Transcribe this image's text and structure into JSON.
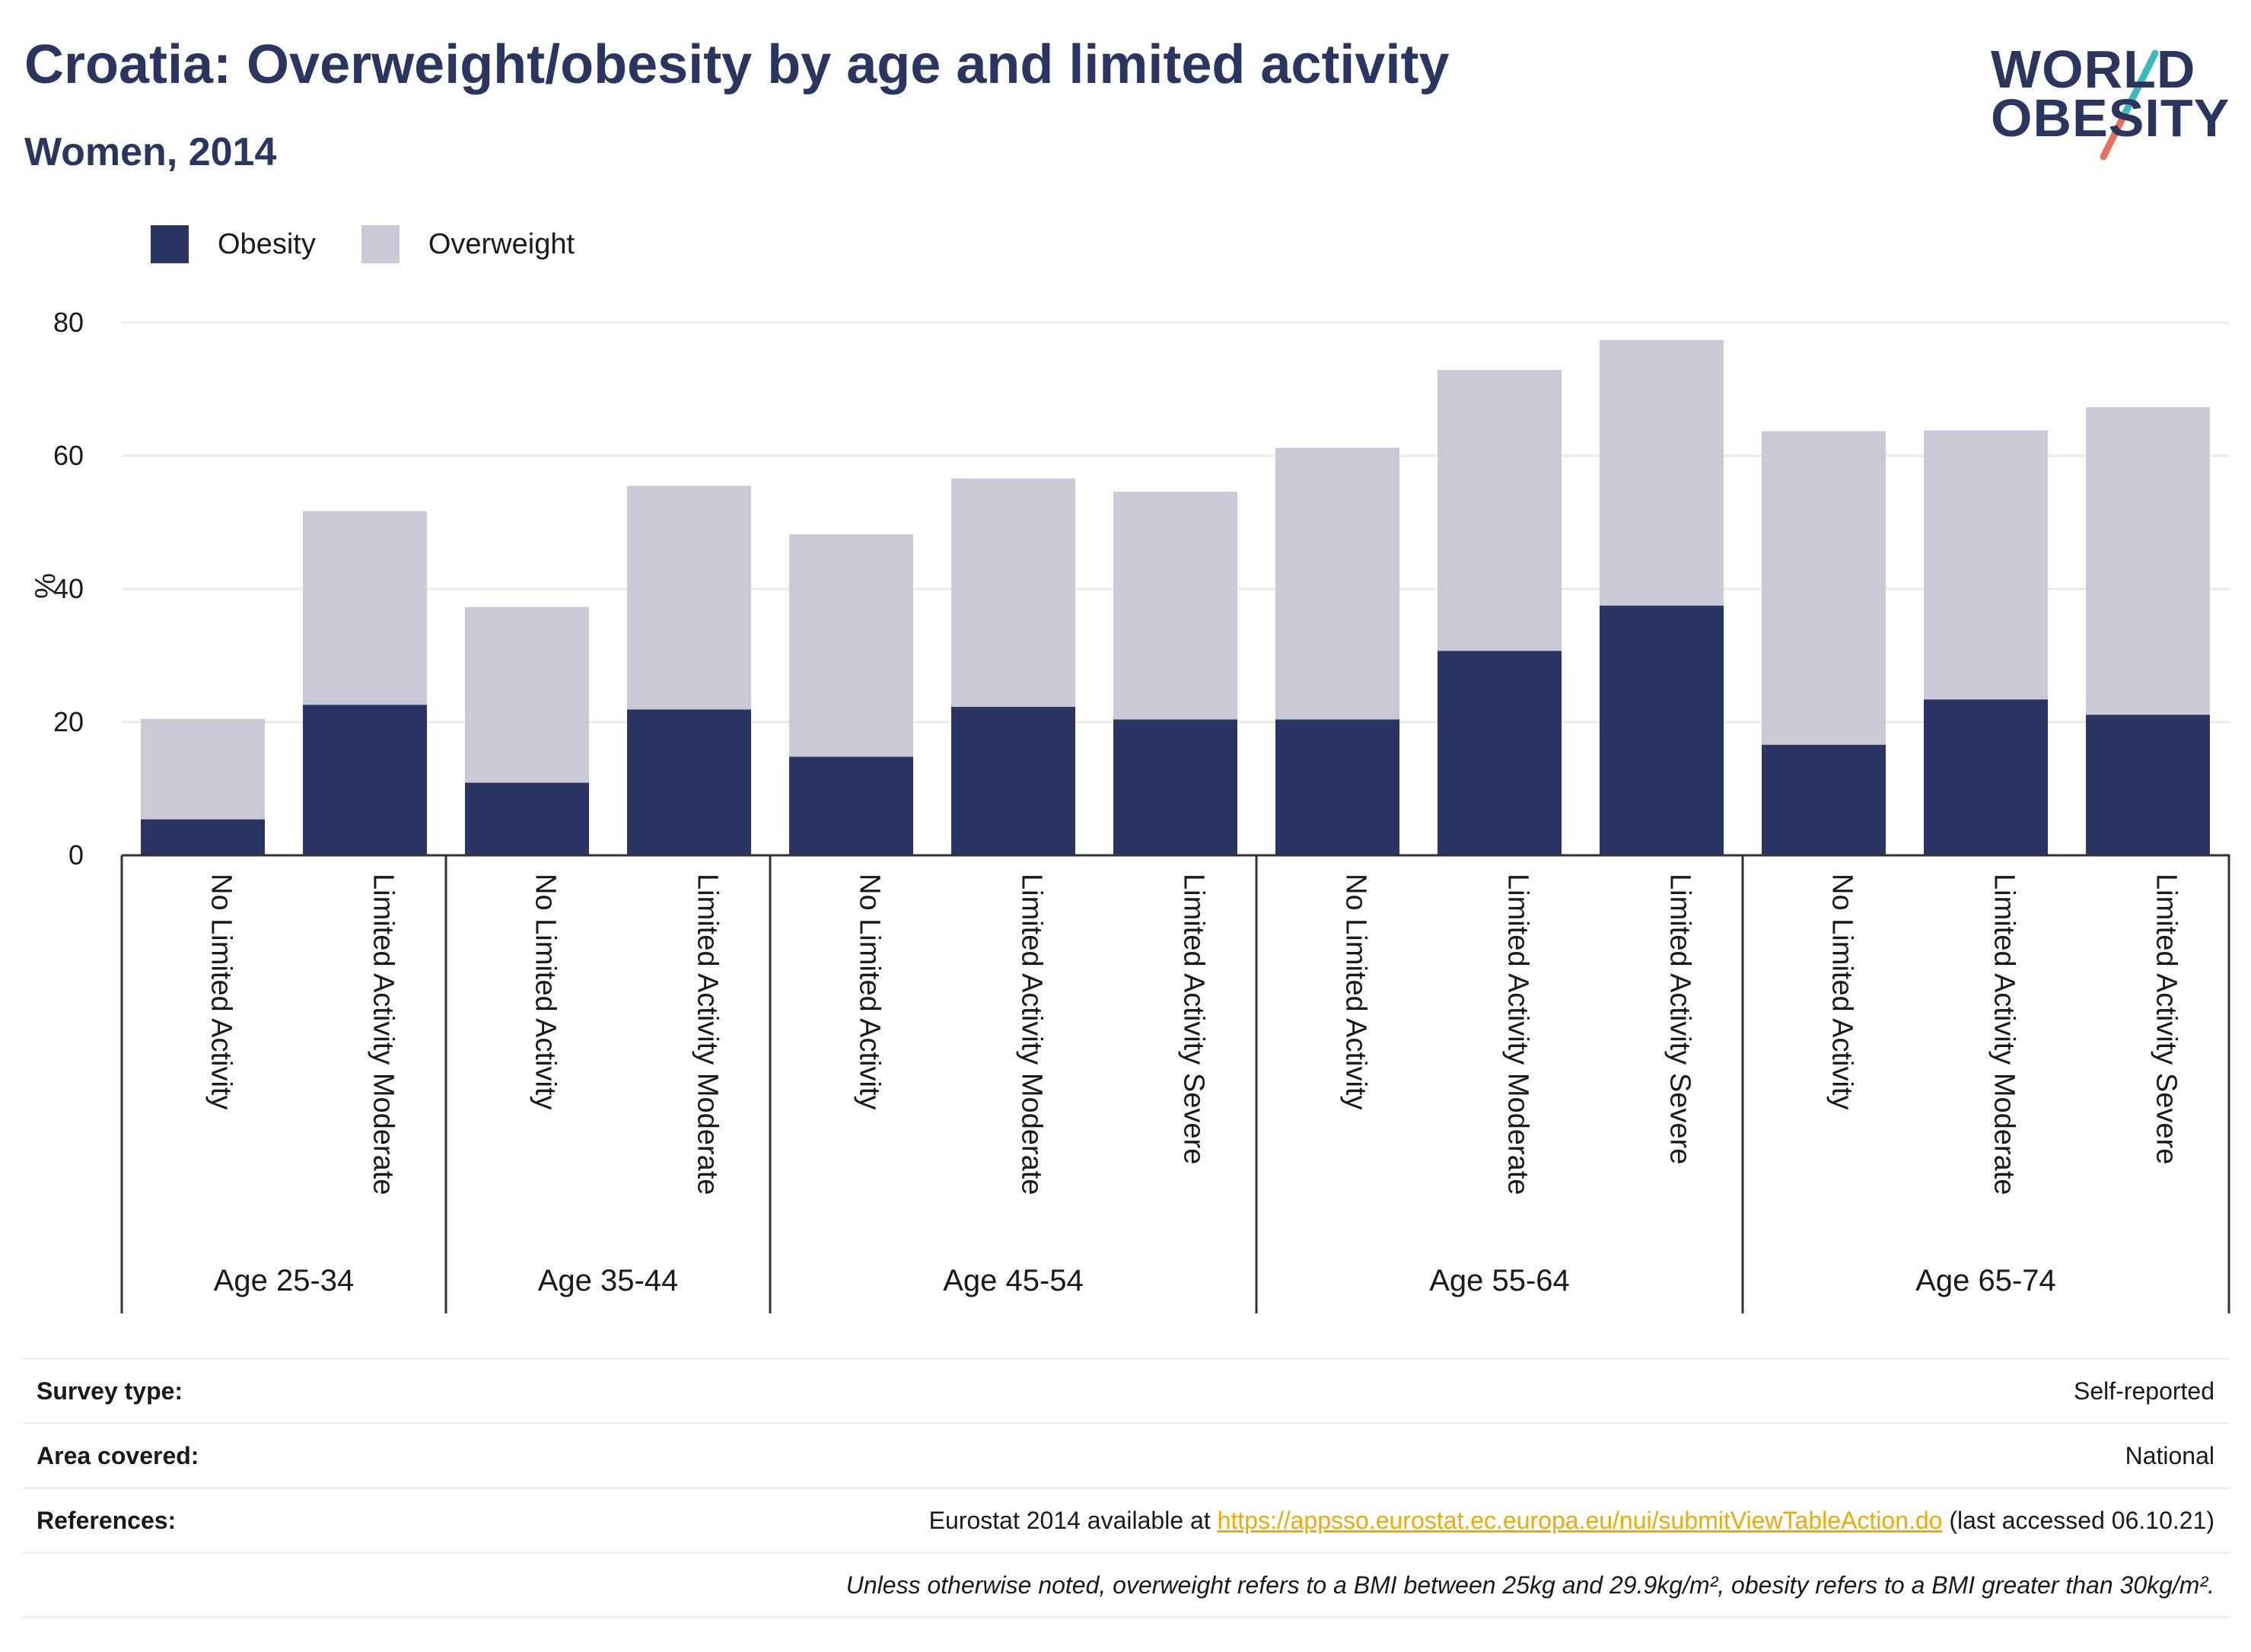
{
  "header": {
    "title": "Croatia: Overweight/obesity by age and limited activity",
    "subtitle": "Women, 2014"
  },
  "logo": {
    "line1": "WORLD",
    "line2": "OBESITY"
  },
  "colors": {
    "obesity": "#2b3563",
    "overweight": "#c9cad6",
    "title": "#2a3660",
    "link": "#f2a900",
    "logo_slash": [
      "#e8705e",
      "#3bbcbc"
    ]
  },
  "chart_data": {
    "type": "bar",
    "stacked": true,
    "ylabel": "%",
    "ylim": [
      0,
      80
    ],
    "yticks": [
      0,
      20,
      40,
      60,
      80
    ],
    "grid": true,
    "legend": "top-left",
    "groups": [
      {
        "label": "Age 25-34",
        "bars": [
          {
            "category": "No Limited Activity",
            "obesity": 5.4,
            "total": 20.5
          },
          {
            "category": "Limited Activity Moderate",
            "obesity": 22.6,
            "total": 51.7
          }
        ]
      },
      {
        "label": "Age 35-44",
        "bars": [
          {
            "category": "No Limited Activity",
            "obesity": 10.9,
            "total": 37.3
          },
          {
            "category": "Limited Activity Moderate",
            "obesity": 21.9,
            "total": 55.5
          }
        ]
      },
      {
        "label": "Age 45-54",
        "bars": [
          {
            "category": "No Limited Activity",
            "obesity": 14.8,
            "total": 48.2
          },
          {
            "category": "Limited Activity Moderate",
            "obesity": 22.3,
            "total": 56.6
          },
          {
            "category": "Limited Activity Severe",
            "obesity": 20.4,
            "total": 54.6
          }
        ]
      },
      {
        "label": "Age 55-64",
        "bars": [
          {
            "category": "No Limited Activity",
            "obesity": 20.4,
            "total": 61.2
          },
          {
            "category": "Limited Activity Moderate",
            "obesity": 30.7,
            "total": 72.9
          },
          {
            "category": "Limited Activity Severe",
            "obesity": 37.5,
            "total": 77.4
          }
        ]
      },
      {
        "label": "Age 65-74",
        "bars": [
          {
            "category": "No Limited Activity",
            "obesity": 16.6,
            "total": 63.7
          },
          {
            "category": "Limited Activity Moderate",
            "obesity": 23.4,
            "total": 63.8
          },
          {
            "category": "Limited Activity Severe",
            "obesity": 21.1,
            "total": 67.3
          }
        ]
      }
    ],
    "series": [
      {
        "name": "Obesity",
        "color": "#2b3563"
      },
      {
        "name": "Overweight",
        "color": "#c9cad6"
      }
    ]
  },
  "info": {
    "survey_label": "Survey type:",
    "survey_value": "Self-reported",
    "area_label": "Area covered:",
    "area_value": "National",
    "ref_label": "References:",
    "ref_prefix": "Eurostat 2014 available at ",
    "ref_link": "https://appsso.eurostat.ec.europa.eu/nui/submitViewTableAction.do",
    "ref_suffix": " (last accessed 06.10.21)",
    "note": "Unless otherwise noted, overweight refers to a BMI between 25kg and 29.9kg/m², obesity refers to a BMI greater than 30kg/m²."
  }
}
